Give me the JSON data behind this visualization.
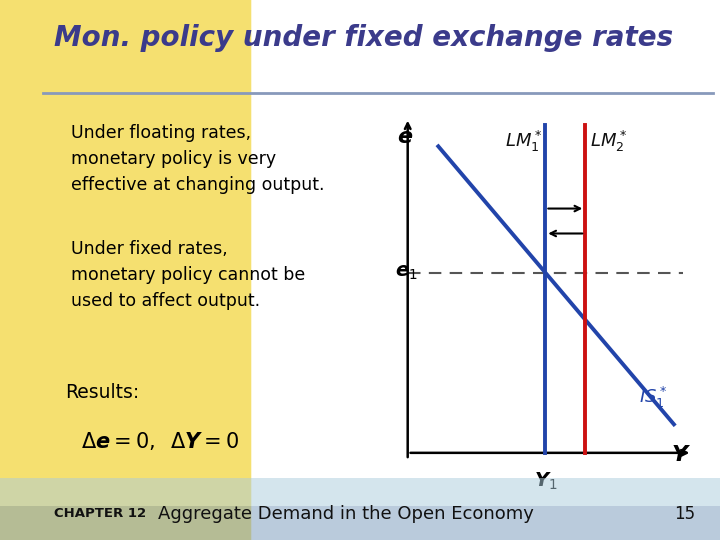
{
  "title": "Mon. policy under fixed exchange rates",
  "title_color": "#3B3B8B",
  "slide_bg": "#FFFFFF",
  "left_stripe_color": "#F0E68C",
  "header_line_color": "#8899BB",
  "text_box_color": "#FFFFCC",
  "text1": "Under floating rates,\nmonetary policy is very\neffective at changing output.",
  "text2": "Under fixed rates,\nmonetary policy cannot be\nused to affect output.",
  "results_label": "Results:",
  "footer_chapter": "CHAPTER 12",
  "footer_title": "Aggregate Demand in the Open Economy",
  "footer_page": "15",
  "graph_bg": "#FFFFFF",
  "IS_color": "#2244AA",
  "LM1_color": "#2244AA",
  "LM2_color": "#CC1111",
  "axis_color": "#000000",
  "dashed_color": "#555555",
  "arrow_color": "#000000",
  "footer_bg_top": "#AABBCC",
  "footer_bg_bot": "#6688AA"
}
